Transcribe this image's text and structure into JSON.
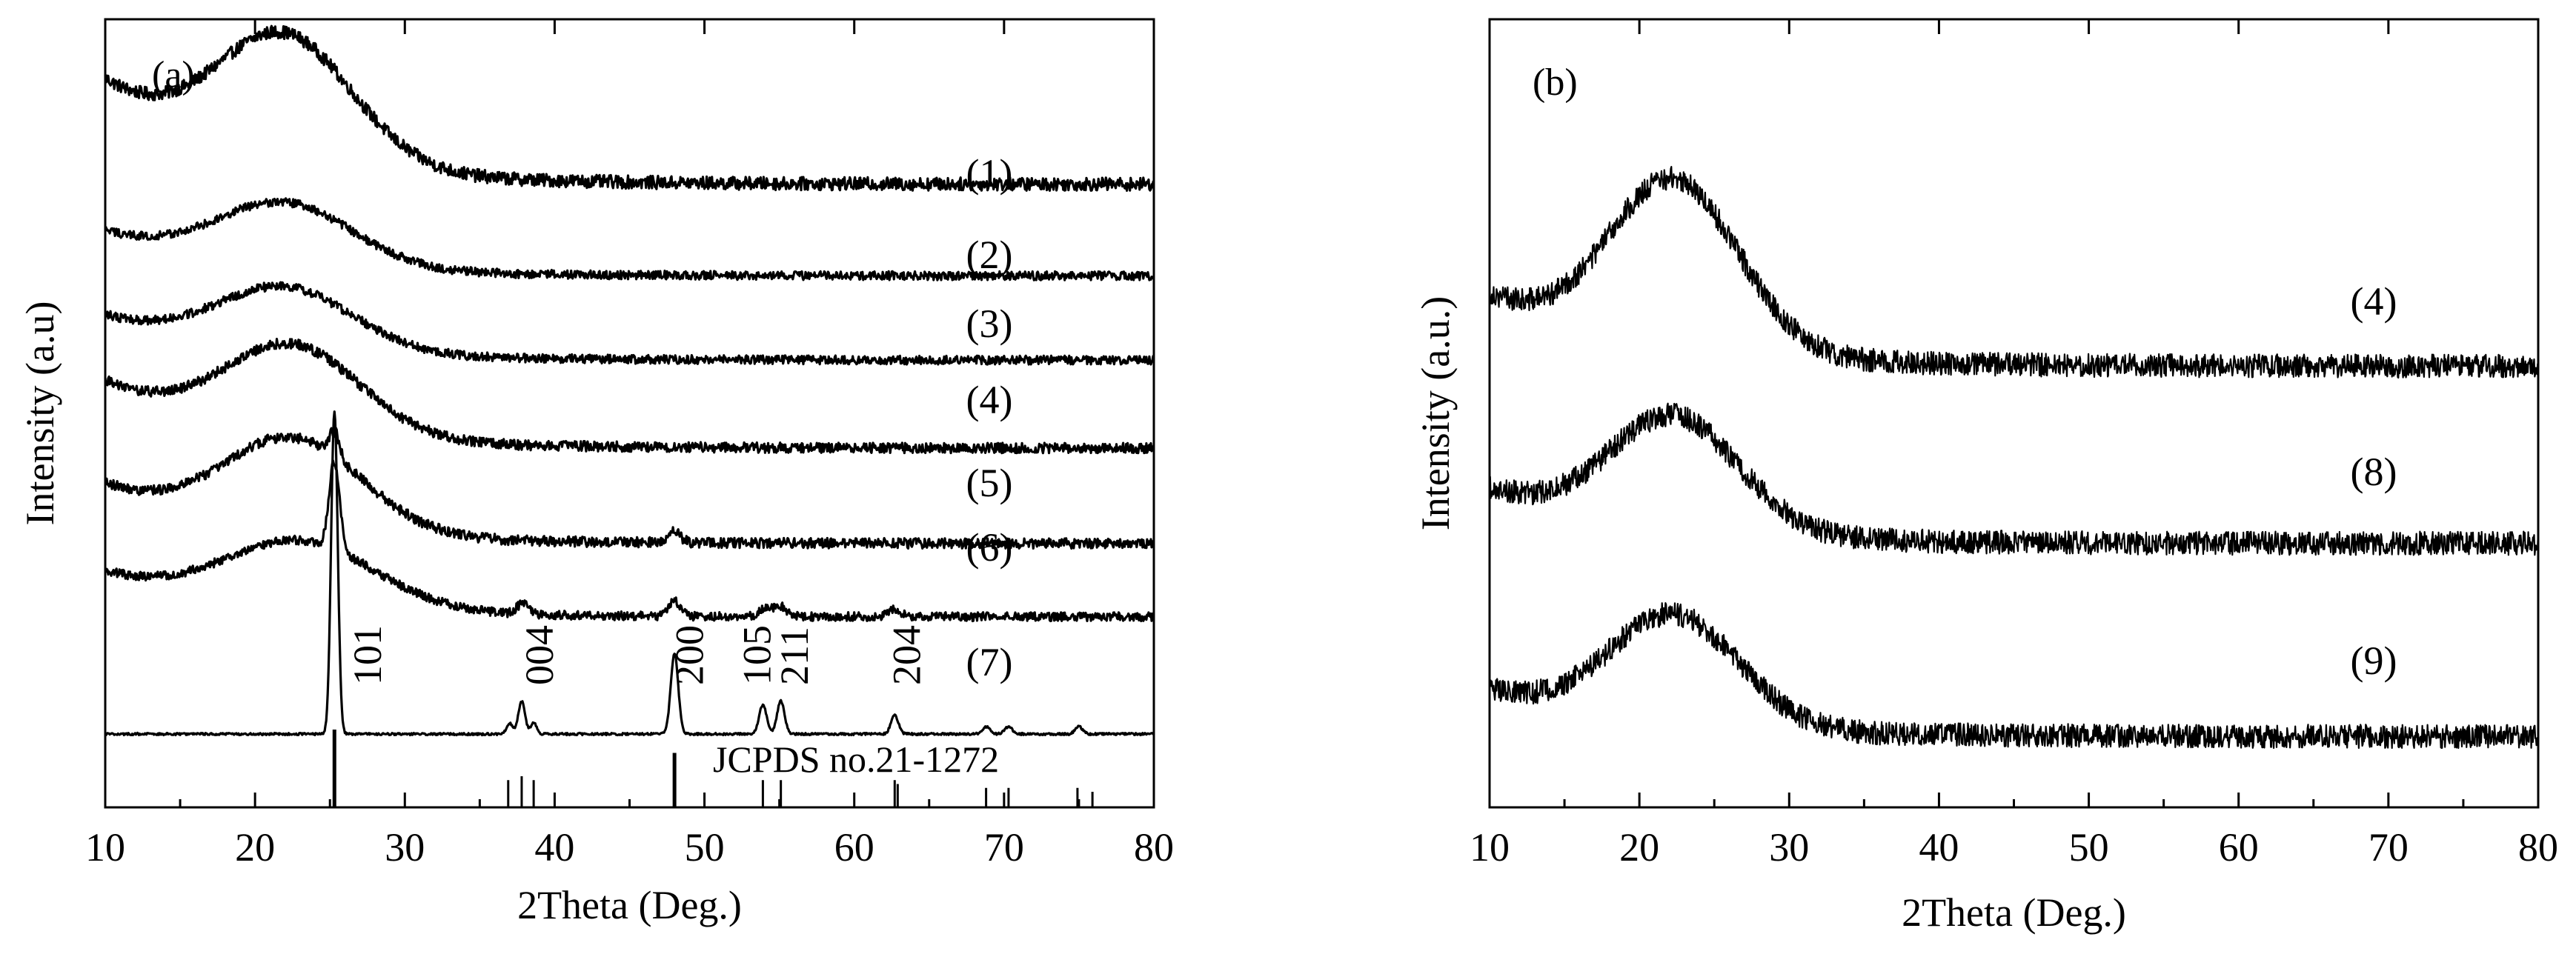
{
  "chart_data": [
    {
      "panel": "(a)",
      "type": "line",
      "xlabel": "2Theta (Deg.)",
      "ylabel": "Intensity (a.u)",
      "xlim": [
        10,
        80
      ],
      "xticks": [
        "10",
        "20",
        "30",
        "40",
        "50",
        "60",
        "70",
        "80"
      ],
      "y_ticks_shown": false,
      "series": [
        {
          "name": "(1)",
          "label": "(1)",
          "baseline": 1.7,
          "hump": 0.34,
          "center": 22.0,
          "width": 4.5,
          "slope": 0.28,
          "noise": 0.018,
          "peaks": []
        },
        {
          "name": "(2)",
          "label": "(2)",
          "baseline": 1.45,
          "hump": 0.17,
          "center": 22.0,
          "width": 4.5,
          "slope": 0.12,
          "noise": 0.012,
          "peaks": []
        },
        {
          "name": "(3)",
          "label": "(3)",
          "baseline": 1.22,
          "hump": 0.17,
          "center": 22.0,
          "width": 4.5,
          "slope": 0.12,
          "noise": 0.012,
          "peaks": []
        },
        {
          "name": "(4)",
          "label": "(4)",
          "baseline": 0.98,
          "hump": 0.24,
          "center": 22.5,
          "width": 4.5,
          "slope": 0.18,
          "noise": 0.014,
          "peaks": []
        },
        {
          "name": "(5)",
          "label": "(5)",
          "baseline": 0.72,
          "hump": 0.25,
          "center": 22.5,
          "width": 4.6,
          "slope": 0.16,
          "noise": 0.014,
          "peaks": [
            [
              25.3,
              0.07,
              0.35
            ],
            [
              48.0,
              0.03,
              0.4
            ]
          ]
        },
        {
          "name": "(6)",
          "label": "(6)",
          "baseline": 0.52,
          "hump": 0.18,
          "center": 23.0,
          "width": 5.0,
          "slope": 0.12,
          "noise": 0.012,
          "peaks": [
            [
              25.3,
              0.24,
              0.35
            ],
            [
              37.9,
              0.03,
              0.4
            ],
            [
              48.0,
              0.04,
              0.4
            ],
            [
              54.0,
              0.02,
              0.4
            ],
            [
              55.0,
              0.03,
              0.4
            ],
            [
              62.7,
              0.02,
              0.4
            ]
          ]
        },
        {
          "name": "(7)",
          "label": "(7)",
          "baseline": 0.2,
          "hump": 0.0,
          "center": 22.0,
          "width": 4.0,
          "slope": 0.0,
          "noise": 0.003,
          "peaks": [
            [
              25.3,
              0.88,
              0.22
            ],
            [
              37.0,
              0.03,
              0.2
            ],
            [
              37.8,
              0.09,
              0.22
            ],
            [
              38.6,
              0.03,
              0.2
            ],
            [
              48.0,
              0.22,
              0.25
            ],
            [
              53.9,
              0.08,
              0.25
            ],
            [
              55.1,
              0.09,
              0.25
            ],
            [
              62.7,
              0.05,
              0.25
            ],
            [
              68.8,
              0.02,
              0.25
            ],
            [
              70.3,
              0.02,
              0.25
            ],
            [
              75.0,
              0.02,
              0.25
            ]
          ]
        }
      ],
      "peak_labels": [
        {
          "text": "101",
          "x": 27.5
        },
        {
          "text": "004",
          "x": 39.0
        },
        {
          "text": "200",
          "x": 49.0
        },
        {
          "text": "105",
          "x": 53.5
        },
        {
          "text": "211",
          "x": 56.0
        },
        {
          "text": "204",
          "x": 63.5
        }
      ],
      "reference_label": "JCPDS no.21-1272",
      "reference_lines": [
        {
          "x": 25.3,
          "height": 1.0
        },
        {
          "x": 36.9,
          "height": 0.35
        },
        {
          "x": 37.8,
          "height": 0.4
        },
        {
          "x": 38.6,
          "height": 0.35
        },
        {
          "x": 48.0,
          "height": 0.7
        },
        {
          "x": 53.9,
          "height": 0.35
        },
        {
          "x": 55.1,
          "height": 0.35
        },
        {
          "x": 62.7,
          "height": 0.35
        },
        {
          "x": 62.9,
          "height": 0.3
        },
        {
          "x": 68.8,
          "height": 0.25
        },
        {
          "x": 70.3,
          "height": 0.25
        },
        {
          "x": 74.9,
          "height": 0.25
        },
        {
          "x": 75.9,
          "height": 0.2
        }
      ]
    },
    {
      "panel": "(b)",
      "type": "line",
      "xlabel": "2Theta (Deg.)",
      "ylabel": "Intensity (a.u.)",
      "xlim": [
        10,
        80
      ],
      "xticks": [
        "10",
        "20",
        "30",
        "40",
        "50",
        "60",
        "70",
        "80"
      ],
      "y_ticks_shown": false,
      "series": [
        {
          "name": "(4)",
          "label": "(4)",
          "baseline": 1.12,
          "hump": 0.43,
          "center": 22.3,
          "width": 4.3,
          "slope": 0.18,
          "noise": 0.03,
          "peaks": []
        },
        {
          "name": "(8)",
          "label": "(8)",
          "baseline": 0.67,
          "hump": 0.29,
          "center": 22.3,
          "width": 4.3,
          "slope": 0.14,
          "noise": 0.03,
          "peaks": []
        },
        {
          "name": "(9)",
          "label": "(9)",
          "baseline": 0.18,
          "hump": 0.28,
          "center": 22.3,
          "width": 4.3,
          "slope": 0.12,
          "noise": 0.03,
          "peaks": []
        }
      ]
    }
  ]
}
